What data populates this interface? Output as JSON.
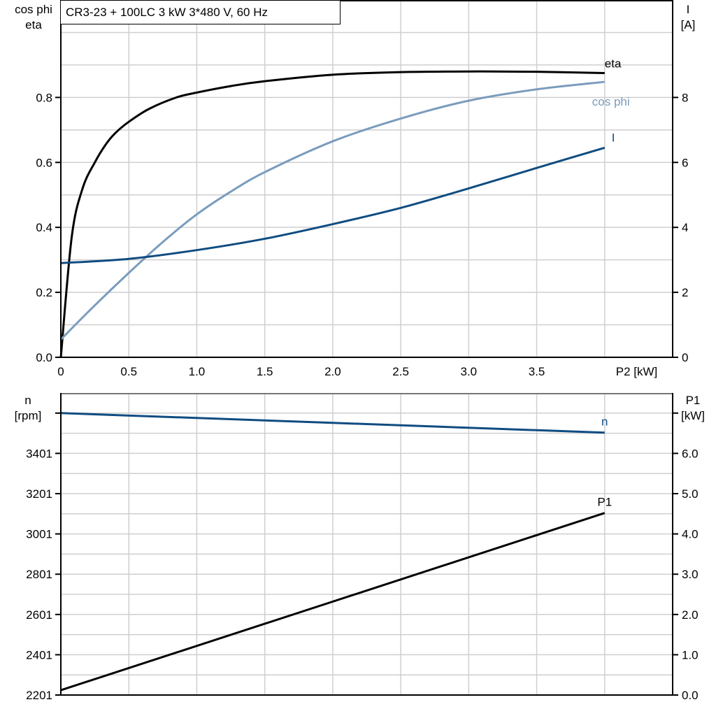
{
  "chart_data": [
    {
      "type": "line",
      "title": "CR3-23 + 100LC   3 kW   3*480 V, 60 Hz",
      "xlabel": "P2 [kW]",
      "ylabel_left": [
        "cos phi",
        "eta"
      ],
      "ylabel_right": [
        "I",
        "[A]"
      ],
      "xlim": [
        0,
        4.5
      ],
      "ylim_left": [
        0,
        1.1
      ],
      "ylim_right": [
        0,
        11
      ],
      "x_ticks": [
        "0",
        "0.5",
        "1.0",
        "1.5",
        "2.0",
        "2.5",
        "3.0",
        "3.5"
      ],
      "y_left_ticks": [
        "0.0",
        "0.2",
        "0.4",
        "0.6",
        "0.8"
      ],
      "y_right_ticks": [
        "0",
        "2",
        "4",
        "6",
        "8"
      ],
      "grid": true,
      "series": [
        {
          "name": "eta",
          "axis": "left",
          "color": "#000000",
          "x": [
            0,
            0.08,
            0.16,
            0.25,
            0.33,
            0.4,
            0.5,
            0.65,
            0.85,
            1.0,
            1.25,
            1.5,
            2.0,
            2.5,
            3.0,
            3.5,
            4.0
          ],
          "y": [
            0,
            0.37,
            0.52,
            0.6,
            0.655,
            0.69,
            0.725,
            0.765,
            0.8,
            0.815,
            0.835,
            0.85,
            0.87,
            0.878,
            0.88,
            0.879,
            0.875
          ]
        },
        {
          "name": "cos phi",
          "axis": "left",
          "color": "#7a9cbd",
          "x": [
            0,
            0.25,
            0.5,
            0.75,
            1.0,
            1.25,
            1.5,
            2.0,
            2.5,
            3.0,
            3.5,
            4.0
          ],
          "y": [
            0.055,
            0.16,
            0.26,
            0.355,
            0.44,
            0.51,
            0.57,
            0.665,
            0.735,
            0.79,
            0.825,
            0.848
          ]
        },
        {
          "name": "I",
          "axis": "right",
          "color": "#0f4c81",
          "x": [
            0,
            0.5,
            1.0,
            1.5,
            2.0,
            2.5,
            3.0,
            3.5,
            4.0
          ],
          "y": [
            2.9,
            3.03,
            3.3,
            3.65,
            4.1,
            4.6,
            5.2,
            5.83,
            6.45
          ]
        }
      ]
    },
    {
      "type": "line",
      "xlim": [
        0,
        4.5
      ],
      "ylabel_left": [
        "n",
        "[rpm]"
      ],
      "ylabel_right": [
        "P1",
        "[kW]"
      ],
      "ylim_left": [
        2201,
        3701
      ],
      "ylim_right": [
        0,
        7.5
      ],
      "y_left_ticks": [
        "2201",
        "2401",
        "2601",
        "2801",
        "3001",
        "3201",
        "3401"
      ],
      "y_right_ticks": [
        "0.0",
        "1.0",
        "2.0",
        "3.0",
        "4.0",
        "5.0",
        "6.0"
      ],
      "grid": true,
      "series": [
        {
          "name": "n",
          "axis": "left",
          "color": "#0f4c81",
          "x": [
            0,
            4.0
          ],
          "y": [
            3601,
            3504
          ]
        },
        {
          "name": "P1",
          "axis": "right",
          "color": "#000000",
          "x": [
            0,
            4.0
          ],
          "y": [
            0.12,
            4.52
          ]
        }
      ]
    }
  ]
}
